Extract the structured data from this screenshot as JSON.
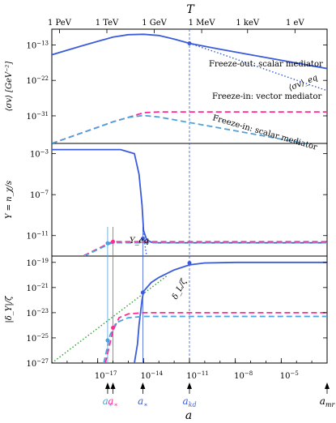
{
  "chart_data": {
    "type": "line",
    "x_axis": {
      "label": "a",
      "scale": "log",
      "range": [
        1e-20,
        0.01
      ],
      "ticks": [
        {
          "v": -17,
          "t": "10^−17"
        },
        {
          "v": -14,
          "t": "10^−14"
        },
        {
          "v": -11,
          "t": "10^−11"
        },
        {
          "v": -8,
          "t": "10^−8"
        },
        {
          "v": -5,
          "t": "10^−5"
        }
      ]
    },
    "top_axis": {
      "label": "T",
      "ticks": [
        {
          "v": -19.5,
          "t": "1 PeV"
        },
        {
          "v": -16.4,
          "t": "1 TeV"
        },
        {
          "v": -13.3,
          "t": "1 GeV"
        },
        {
          "v": -10.2,
          "t": "1 MeV"
        },
        {
          "v": -7.2,
          "t": "1 keV"
        },
        {
          "v": -4.1,
          "t": "1 eV"
        }
      ]
    },
    "panels": [
      {
        "ylabel": "⟨σv⟩ [GeV⁻²]",
        "yrange": [
          -38,
          -9
        ],
        "yticks": [
          {
            "v": -13,
            "t": "10^−13"
          },
          {
            "v": -22,
            "t": "10^−22"
          },
          {
            "v": -31,
            "t": "10^−31"
          }
        ],
        "series": [
          {
            "name": "Freeze-out: scalar mediator",
            "color": "#3b5bdb",
            "dash": "solid",
            "x": [
              -20,
              -18,
              -16,
              -15,
              -14,
              -13,
              -12,
              -11,
              -9,
              -7,
              -5,
              -3,
              -2
            ],
            "y": [
              -15.5,
              -13.2,
              -11.0,
              -10.4,
              -10.3,
              -10.6,
              -11.5,
              -12.6,
              -14.1,
              -15.5,
              -16.9,
              -18.3,
              -19.0
            ]
          },
          {
            "name": "⟨σv⟩_eq",
            "color": "#3b5bdb",
            "dash": "dotted",
            "x": [
              -11,
              -9,
              -7,
              -5,
              -3,
              -2
            ],
            "y": [
              -12.6,
              -15.2,
              -17.9,
              -20.6,
              -23.3,
              -24.6
            ]
          },
          {
            "name": "Freeze-in: vector mediator",
            "color": "#ff2a92",
            "dash": "dashed",
            "x": [
              -20,
              -17,
              -16,
              -15,
              -14,
              -13,
              -11,
              -8,
              -5,
              -2
            ],
            "y": [
              -38,
              -33.9,
              -32.5,
              -31.4,
              -30.2,
              -30.0,
              -30.0,
              -30.0,
              -30.0,
              -30.0
            ]
          },
          {
            "name": "Freeze-in: scalar mediator",
            "color": "#4aa3df",
            "dash": "dashed",
            "x": [
              -20,
              -17,
              -16,
              -15,
              -14,
              -13,
              -12,
              -11,
              -9,
              -7,
              -5,
              -3,
              -2
            ],
            "y": [
              -38,
              -33.9,
              -32.5,
              -31.4,
              -30.9,
              -31.3,
              -32.0,
              -32.7,
              -34.1,
              -35.5,
              -36.9,
              -38.3,
              -39.0
            ]
          }
        ],
        "labels": [
          {
            "t": "Freeze-out: scalar mediator",
            "color": "#3b5bdb"
          },
          {
            "t": "⟨σv⟩_eq",
            "color": "#3b5bdb"
          },
          {
            "t": "Freeze-in: vector mediator",
            "color": "#ff2a92"
          },
          {
            "t": "Freeze-in: scalar mediator",
            "color": "#4aa3df"
          }
        ]
      },
      {
        "ylabel": "Y = n_χ/s",
        "yrange": [
          -13,
          -2
        ],
        "yticks": [
          {
            "v": -3,
            "t": "10^−3"
          },
          {
            "v": -7,
            "t": "10^−7"
          },
          {
            "v": -11,
            "t": "10^−11"
          }
        ],
        "series": [
          {
            "name": "Freeze-out",
            "color": "#3b5bdb",
            "dash": "solid",
            "x": [
              -20,
              -15.5,
              -14.6,
              -14.3,
              -14.1,
              -14.0,
              -13.8,
              -13.5,
              -13,
              -11,
              -2
            ],
            "y": [
              -2.6,
              -2.6,
              -3.0,
              -5.0,
              -8.0,
              -10.5,
              -11.4,
              -11.65,
              -11.7,
              -11.7,
              -11.7
            ]
          },
          {
            "name": "Y_eq",
            "color": "#3b5bdb",
            "dash": "dotted",
            "x": [
              -14.0,
              -13.9,
              -13.8,
              -13.7
            ],
            "y": [
              -10.8,
              -12.0,
              -13.0,
              -14.0
            ]
          },
          {
            "name": "Freeze-in: vector",
            "color": "#ff2a92",
            "dash": "dashed",
            "x": [
              -20,
              -16.2,
              -16.0,
              -13.0,
              -2
            ],
            "y": [
              -14.5,
              -11.7,
              -11.6,
              -11.6,
              -11.6
            ]
          },
          {
            "name": "Freeze-in: scalar",
            "color": "#4aa3df",
            "dash": "dashed",
            "x": [
              -20,
              -16.2,
              -16.0,
              -13.0,
              -2
            ],
            "y": [
              -14.5,
              -11.8,
              -11.7,
              -11.7,
              -11.7
            ]
          }
        ],
        "labels": [
          {
            "t": "Y_eq",
            "color": "#444444"
          }
        ]
      },
      {
        "ylabel": "|δ_Y|/ζ",
        "yrange": [
          -27,
          -18.5
        ],
        "yticks": [
          {
            "v": -19,
            "t": "10^−19"
          },
          {
            "v": -21,
            "t": "10^−21"
          },
          {
            "v": -23,
            "t": "10^−23"
          },
          {
            "v": -25,
            "t": "10^−25"
          },
          {
            "v": -27,
            "t": "10^−27"
          }
        ],
        "series": [
          {
            "name": "δ_L/ζ",
            "color": "#2ca02c",
            "dash": "dotted",
            "x": [
              -20,
              -12.4
            ],
            "y": [
              -27,
              -20.0
            ]
          },
          {
            "name": "Freeze-out",
            "color": "#3b5bdb",
            "dash": "solid",
            "x": [
              -14.6,
              -14.4,
              -14.3,
              -14.1,
              -14.0,
              -13.5,
              -13,
              -12,
              -11,
              -10,
              -8,
              -5,
              -2
            ],
            "y": [
              -27,
              -25.5,
              -24.0,
              -22.0,
              -21.3,
              -20.6,
              -20.2,
              -19.6,
              -19.2,
              -19.05,
              -19.0,
              -19.0,
              -19.0
            ]
          },
          {
            "name": "Freeze-in: vector",
            "color": "#ff2a92",
            "dash": "dashed",
            "x": [
              -16.5,
              -16.0,
              -15.6,
              -15.0,
              -14.0,
              -2
            ],
            "y": [
              -27,
              -24.4,
              -23.4,
              -23.1,
              -23.0,
              -23.0
            ]
          },
          {
            "name": "Freeze-in: scalar",
            "color": "#4aa3df",
            "dash": "dashed",
            "x": [
              -16.6,
              -16.2,
              -15.8,
              -15.0,
              -14.0,
              -2
            ],
            "y": [
              -27,
              -24.8,
              -23.8,
              -23.4,
              -23.3,
              -23.3
            ]
          }
        ],
        "labels": [
          {
            "t": "δ_L/ζ",
            "color": "#2ca02c"
          }
        ]
      }
    ],
    "markers": [
      {
        "name": "a_* (freeze-in scalar)",
        "x": -16.35,
        "color": "#4aa3df",
        "label": "a_*"
      },
      {
        "name": "a_* (freeze-in vector)",
        "x": -16.0,
        "color": "#ff2a92",
        "label": "a_*"
      },
      {
        "name": "a_* (freeze-out)",
        "x": -14.05,
        "color": "#3b5bdb",
        "label": "a_*"
      },
      {
        "name": "a_kd",
        "x": -11.0,
        "color": "#3b5bdb",
        "label": "a_kd"
      },
      {
        "name": "a_mr",
        "x": -2.0,
        "color": "#000000",
        "label": "a_mr"
      }
    ]
  }
}
